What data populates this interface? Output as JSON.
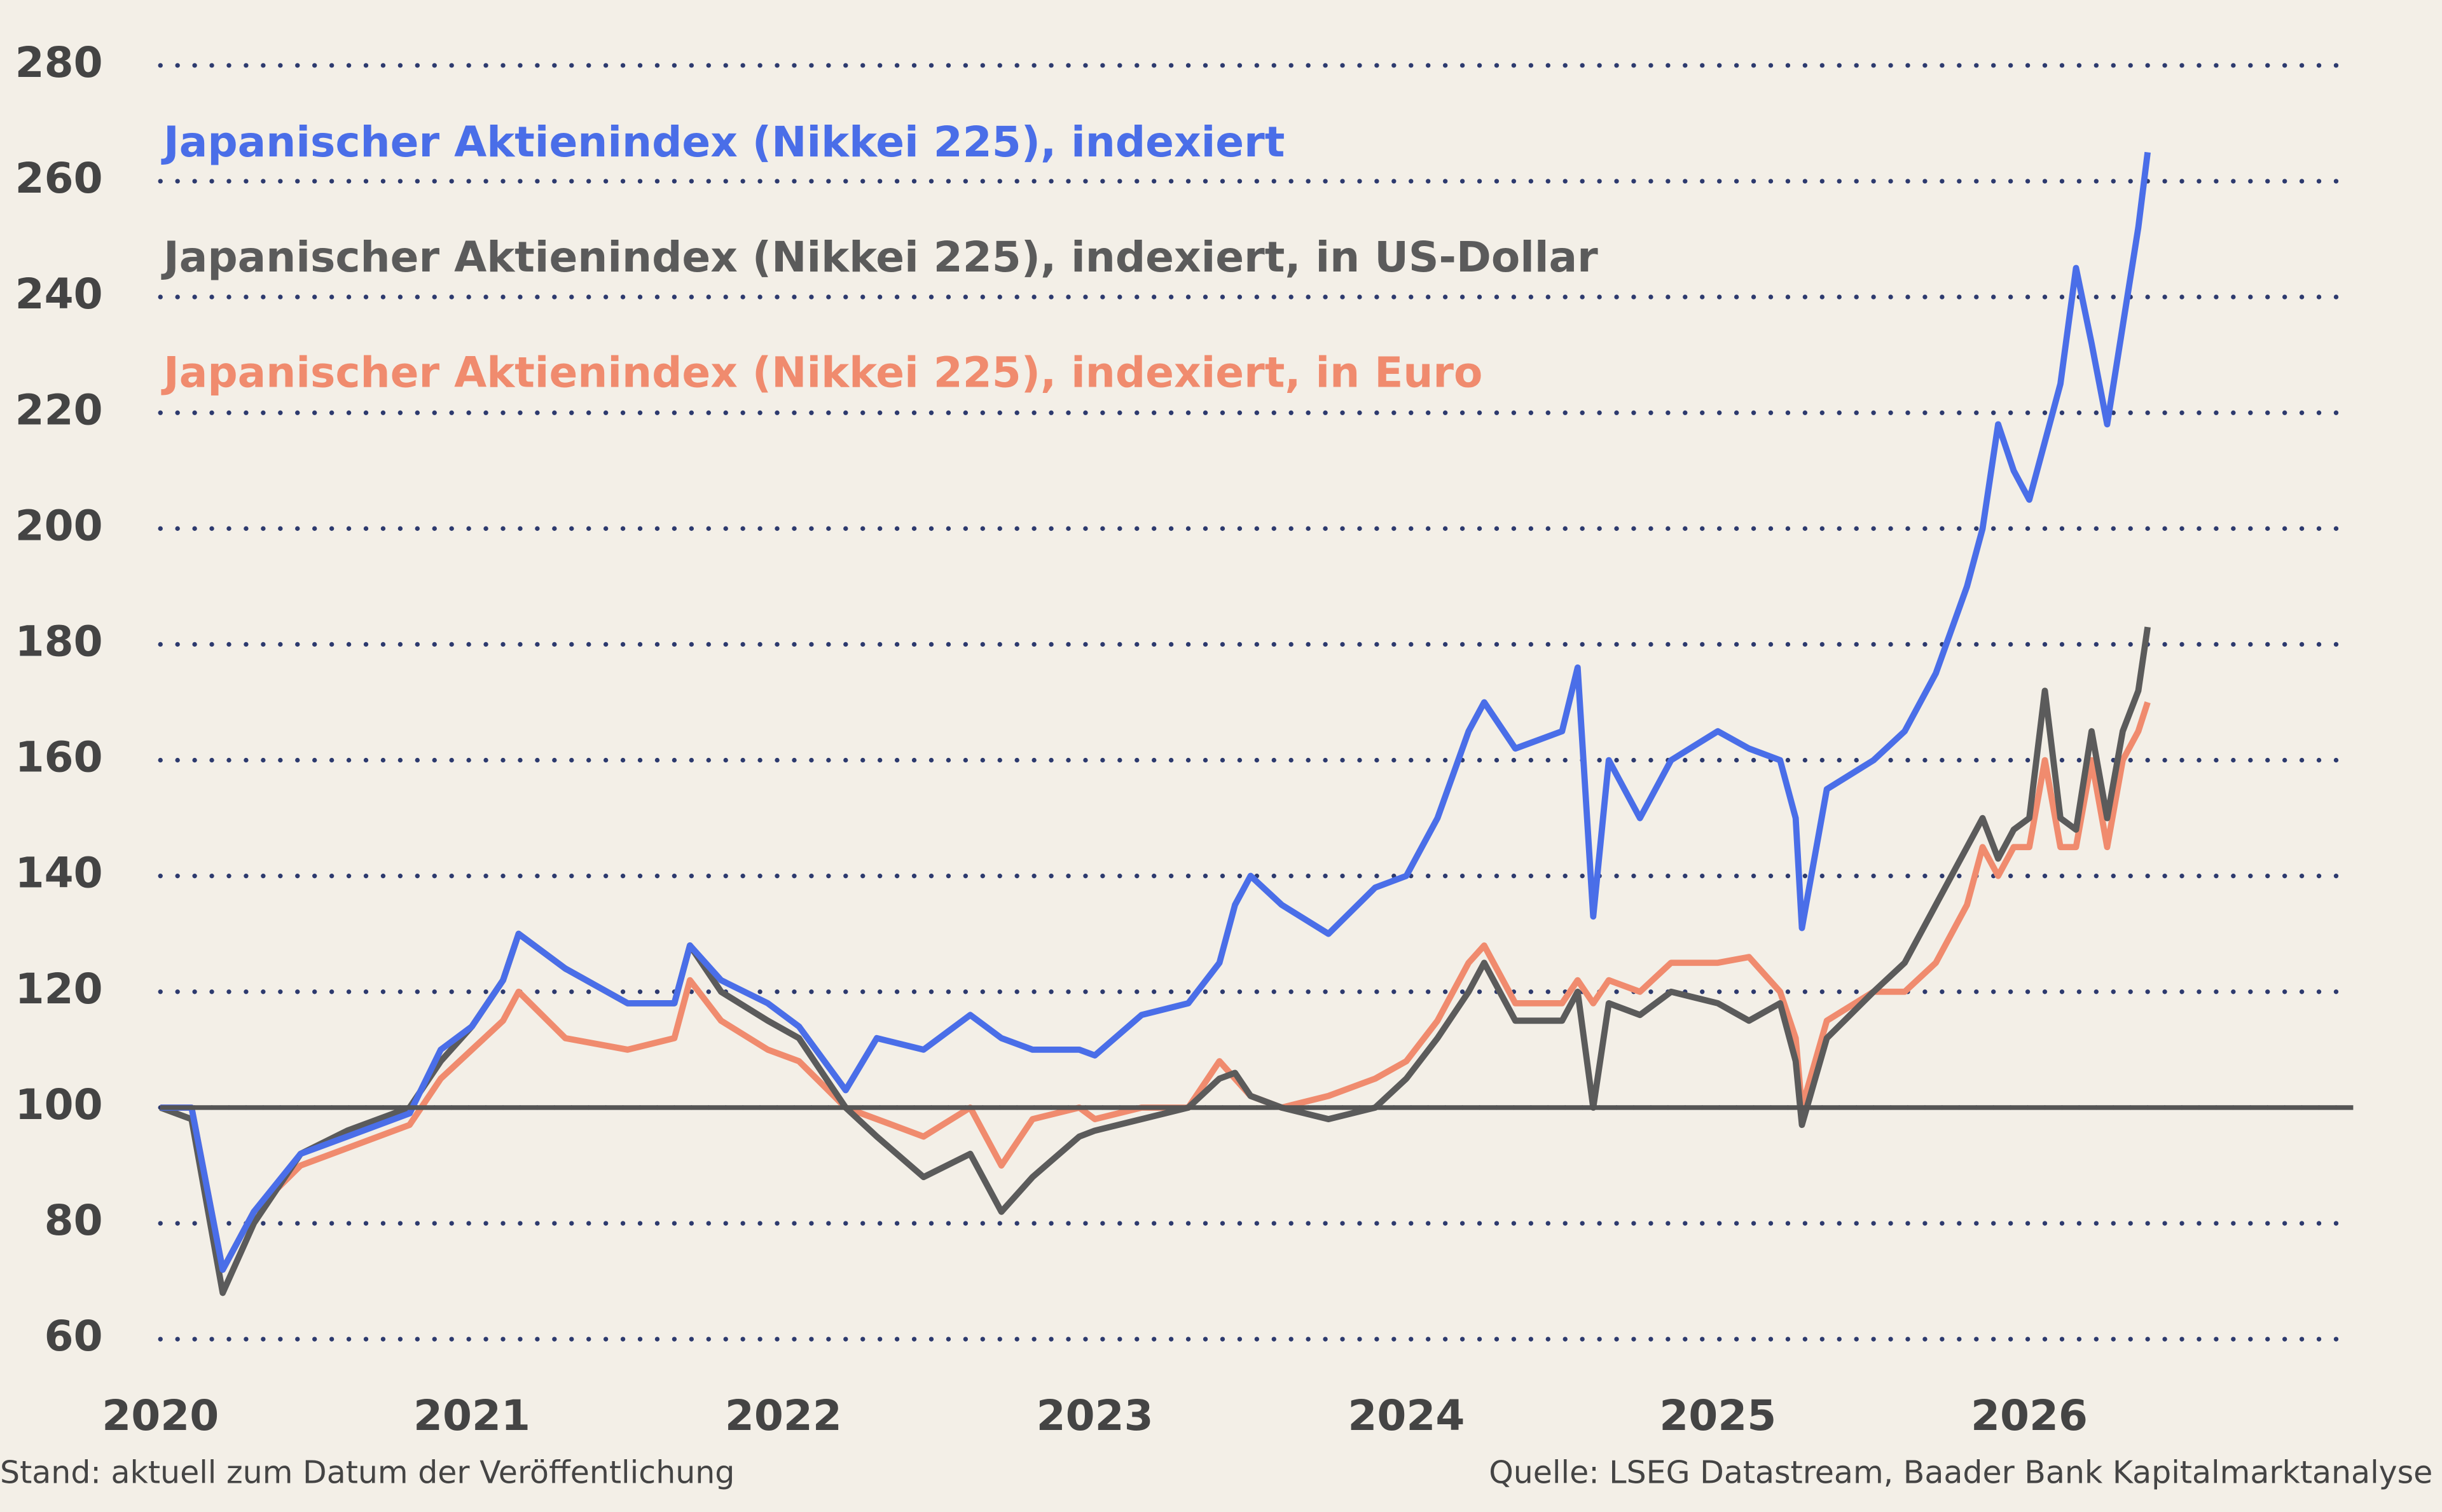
{
  "chart_data": {
    "type": "line",
    "x": [
      2020.0,
      2020.1,
      2020.2,
      2020.3,
      2020.45,
      2020.6,
      2020.8,
      2020.9,
      2021.0,
      2021.1,
      2021.15,
      2021.3,
      2021.5,
      2021.65,
      2021.7,
      2021.8,
      2021.95,
      2022.05,
      2022.2,
      2022.3,
      2022.45,
      2022.6,
      2022.7,
      2022.8,
      2022.95,
      2023.0,
      2023.15,
      2023.3,
      2023.4,
      2023.45,
      2023.5,
      2023.6,
      2023.75,
      2023.9,
      2024.0,
      2024.1,
      2024.2,
      2024.25,
      2024.35,
      2024.5,
      2024.55,
      2024.6,
      2024.65,
      2024.75,
      2024.85,
      2025.0,
      2025.1,
      2025.2,
      2025.25,
      2025.27,
      2025.35,
      2025.5,
      2025.6,
      2025.7,
      2025.8,
      2025.85,
      2025.9,
      2025.95,
      2026.0,
      2026.05,
      2026.1,
      2026.15,
      2026.2,
      2026.25,
      2026.3,
      2026.35,
      2026.38
    ],
    "series": [
      {
        "name": "Japanischer Aktienindex (Nikkei 225), indexiert",
        "color": "#4a6ee8",
        "values": [
          100,
          100,
          72,
          82,
          92,
          95,
          99,
          110,
          114,
          122,
          130,
          124,
          118,
          118,
          128,
          122,
          118,
          114,
          103,
          112,
          110,
          116,
          112,
          110,
          110,
          109,
          116,
          118,
          125,
          135,
          140,
          135,
          130,
          138,
          140,
          150,
          165,
          170,
          162,
          165,
          176,
          133,
          160,
          150,
          160,
          165,
          162,
          160,
          150,
          131,
          155,
          160,
          165,
          175,
          190,
          200,
          218,
          210,
          205,
          215,
          225,
          245,
          232,
          218,
          235,
          252,
          265
        ]
      },
      {
        "name": "Japanischer Aktienindex (Nikkei 225), indexiert, in US-Dollar",
        "color": "#5b5b5b",
        "values": [
          100,
          98,
          68,
          80,
          92,
          96,
          100,
          108,
          114,
          122,
          130,
          124,
          118,
          118,
          128,
          120,
          115,
          112,
          100,
          95,
          88,
          92,
          82,
          88,
          95,
          96,
          98,
          100,
          105,
          106,
          102,
          100,
          98,
          100,
          105,
          112,
          120,
          125,
          115,
          115,
          120,
          100,
          118,
          116,
          120,
          118,
          115,
          118,
          108,
          97,
          112,
          120,
          125,
          135,
          145,
          150,
          143,
          148,
          150,
          172,
          150,
          148,
          165,
          150,
          165,
          172,
          183
        ]
      },
      {
        "name": "Japanischer Aktienindex (Nikkei 225), indexiert, in Euro",
        "color": "#f08b6e",
        "values": [
          100,
          100,
          72,
          82,
          90,
          93,
          97,
          105,
          110,
          115,
          120,
          112,
          110,
          112,
          122,
          115,
          110,
          108,
          100,
          98,
          95,
          100,
          90,
          98,
          100,
          98,
          100,
          100,
          108,
          105,
          102,
          100,
          102,
          105,
          108,
          115,
          125,
          128,
          118,
          118,
          122,
          118,
          122,
          120,
          125,
          125,
          126,
          120,
          112,
          100,
          115,
          120,
          120,
          125,
          135,
          145,
          140,
          145,
          145,
          160,
          145,
          145,
          160,
          145,
          160,
          165,
          170
        ]
      }
    ],
    "xlim": [
      2020,
      2027.04
    ],
    "xticks": [
      2020,
      2021,
      2022,
      2023,
      2024,
      2025,
      2026
    ],
    "ylim": [
      60,
      280
    ],
    "yticks": [
      60,
      80,
      100,
      120,
      140,
      160,
      180,
      200,
      220,
      240,
      260,
      280
    ],
    "grid": true,
    "reference_line": 100,
    "note": "Stand: aktuell zum Datum der Veröffentlichung",
    "source": "Quelle: LSEG Datastream, Baader Bank Kapitalmarktanalyse"
  }
}
